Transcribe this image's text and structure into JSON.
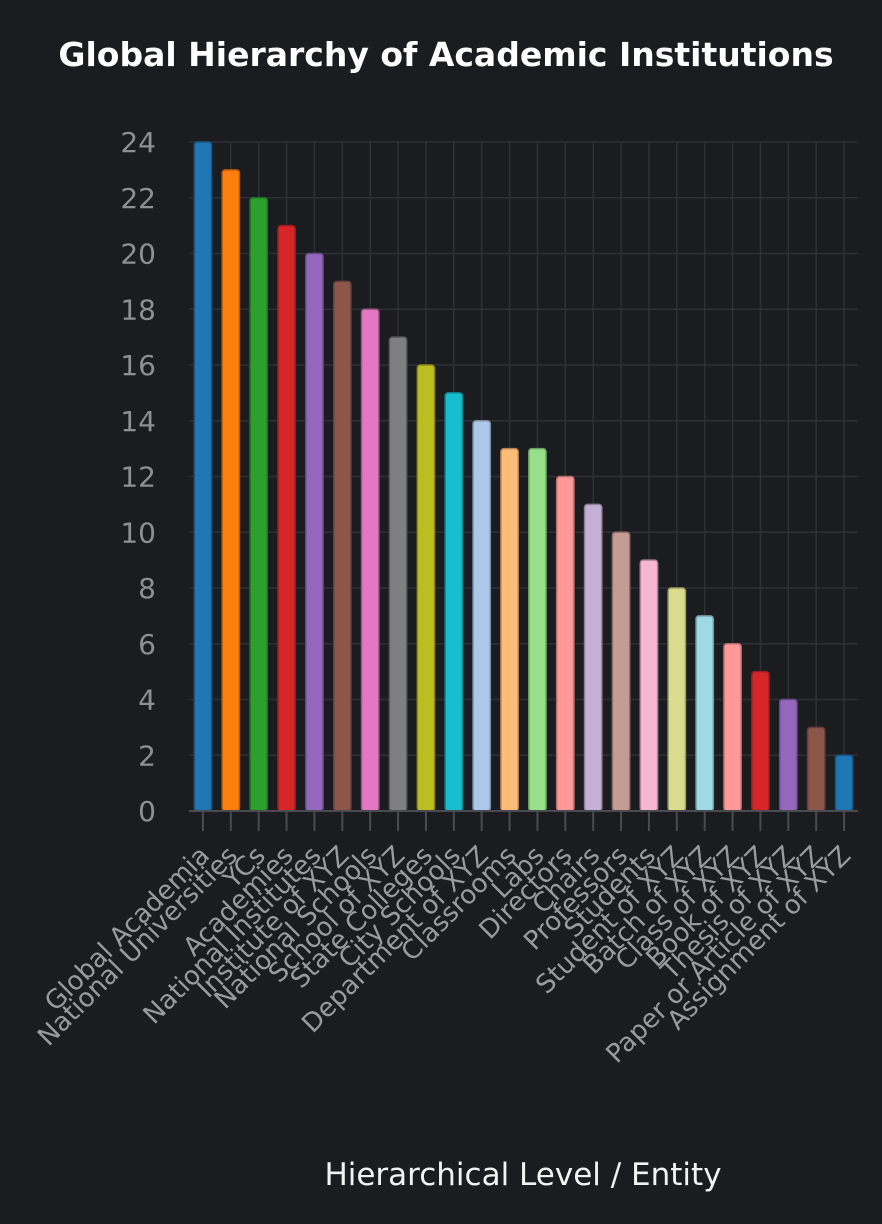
{
  "chart_data": {
    "type": "bar",
    "title": "Global Hierarchy of Academic Institutions",
    "xlabel": "Hierarchical Level / Entity",
    "ylabel": "",
    "ylim": [
      0,
      24
    ],
    "yticks": [
      0,
      2,
      4,
      6,
      8,
      10,
      12,
      14,
      16,
      18,
      20,
      22,
      24
    ],
    "grid": true,
    "categories": [
      "Global Academia",
      "National Universities",
      "YCs",
      "Academies",
      "National Institutes",
      "Institute of XYZ",
      "National Schools",
      "School of XYZ",
      "State Colleges",
      "City Schools",
      "Department of XYZ",
      "Classrooms",
      "Labs",
      "Directors",
      "Chairs",
      "Professors",
      "Students",
      "Student of XYZ",
      "Batch of XYZ",
      "Class of XYZ",
      "Book of XYZ",
      "Thesis of XYZ",
      "Paper or Article of XYZ",
      "Assignment of XYZ"
    ],
    "values": [
      24,
      23,
      22,
      21,
      20,
      19,
      18,
      17,
      16,
      15,
      14,
      13,
      13,
      12,
      11,
      10,
      9,
      8,
      7,
      6,
      5,
      4,
      3,
      2
    ],
    "colors": [
      "#1f77b4",
      "#ff7f0e",
      "#2ca02c",
      "#d62728",
      "#9467bd",
      "#8c564b",
      "#e377c2",
      "#7f7f7f",
      "#bcbd22",
      "#17becf",
      "#aec7e8",
      "#ffbb78",
      "#98df8a",
      "#ff9896",
      "#c5b0d5",
      "#c49c94",
      "#f7b6d2",
      "#dbdb8d",
      "#9edae5",
      "#ff9896",
      "#d62728",
      "#9467bd",
      "#8c564b",
      "#1f77b4"
    ]
  }
}
